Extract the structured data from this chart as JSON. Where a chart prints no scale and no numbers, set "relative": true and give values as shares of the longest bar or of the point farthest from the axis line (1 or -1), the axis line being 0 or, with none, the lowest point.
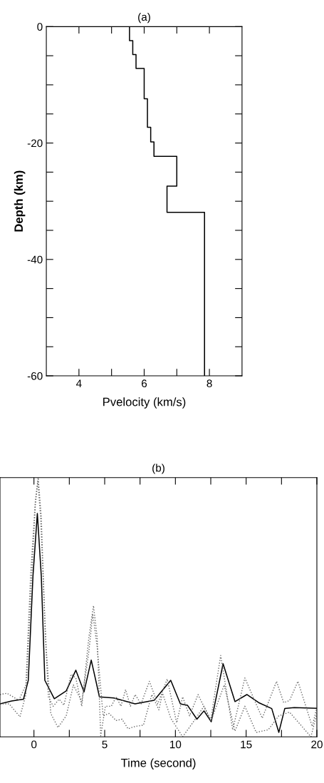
{
  "chart_data": [
    {
      "type": "line",
      "title": "(a)",
      "xlabel": "Pvelocity (km/s)",
      "ylabel": "Depth (km)",
      "xlim": [
        3,
        9
      ],
      "ylim": [
        -60,
        0
      ],
      "xticks": [
        {
          "value": 4,
          "label": "4"
        },
        {
          "value": 5,
          "label": null
        },
        {
          "value": 6,
          "label": "6"
        },
        {
          "value": 7,
          "label": null
        },
        {
          "value": 8,
          "label": "8"
        }
      ],
      "yticks": [
        {
          "value": 0,
          "label": "0"
        },
        {
          "value": -5,
          "label": null
        },
        {
          "value": -10,
          "label": null
        },
        {
          "value": -15,
          "label": null
        },
        {
          "value": -20,
          "label": "-20"
        },
        {
          "value": -25,
          "label": null
        },
        {
          "value": -30,
          "label": null
        },
        {
          "value": -35,
          "label": null
        },
        {
          "value": -40,
          "label": "-40"
        },
        {
          "value": -45,
          "label": null
        },
        {
          "value": -50,
          "label": null
        },
        {
          "value": -55,
          "label": null
        },
        {
          "value": -60,
          "label": "-60"
        }
      ],
      "series": [
        {
          "color": "#000000",
          "line_style": "solid",
          "x": [
            5.55,
            5.55,
            5.65,
            5.65,
            5.75,
            5.75,
            6.0,
            6.0,
            6.1,
            6.1,
            6.2,
            6.2,
            6.3,
            6.3,
            7.0,
            7.0,
            6.7,
            6.7,
            7.85,
            7.85
          ],
          "values": [
            0,
            -2.4,
            -2.4,
            -4.8,
            -4.8,
            -7.2,
            -7.2,
            -12.4,
            -12.4,
            -17.3,
            -17.3,
            -19.8,
            -19.8,
            -22.3,
            -22.3,
            -27.4,
            -27.4,
            -31.9,
            -31.9,
            -60
          ]
        }
      ]
    },
    {
      "type": "line",
      "title": "(b)",
      "xlabel": "Time (second)",
      "relative": true,
      "tick_labels": "x",
      "xlim": [
        -2.4,
        20
      ],
      "xticks": [
        {
          "value": 0,
          "label": "0"
        },
        {
          "value": 2.5,
          "label": null
        },
        {
          "value": 5,
          "label": "5"
        },
        {
          "value": 7.5,
          "label": null
        },
        {
          "value": 10,
          "label": "10"
        },
        {
          "value": 12.5,
          "label": null
        },
        {
          "value": 15,
          "label": "15"
        },
        {
          "value": 17.5,
          "label": null
        },
        {
          "value": 20,
          "label": "20"
        }
      ],
      "series": [
        {
          "color": "#000000",
          "line_style": "solid",
          "x": [
            -2.4,
            -1.58,
            -0.74,
            -0.4,
            -0.07,
            0.24,
            0.52,
            0.77,
            1.44,
            2.28,
            2.96,
            3.54,
            4.05,
            4.63,
            5.64,
            7.15,
            8.5,
            9.67,
            10.35,
            10.85,
            11.52,
            12.02,
            12.53,
            13.37,
            14.21,
            15.05,
            15.88,
            16.81,
            17.31,
            17.73,
            18.4,
            20.0
          ],
          "values": [
            0.127,
            0.138,
            0.145,
            0.218,
            0.62,
            0.862,
            0.62,
            0.218,
            0.147,
            0.177,
            0.257,
            0.173,
            0.296,
            0.154,
            0.15,
            0.127,
            0.141,
            0.218,
            0.127,
            0.122,
            0.068,
            0.1,
            0.058,
            0.282,
            0.136,
            0.163,
            0.132,
            0.109,
            0.017,
            0.109,
            0.113,
            0.11
          ]
        },
        {
          "color": "#666666",
          "line_style": "dotted",
          "x": [
            -2.4,
            -1.91,
            -1.07,
            -0.57,
            -0.24,
            0.1,
            0.3,
            0.52,
            0.77,
            1.02,
            1.36,
            1.78,
            2.12,
            2.62,
            2.96,
            3.38,
            3.88,
            4.21,
            4.47,
            4.72,
            5.05,
            5.47,
            5.81,
            6.15,
            6.48,
            6.82,
            7.15,
            7.57,
            8.16,
            8.75,
            9.42,
            10.09,
            10.51,
            11.0,
            11.6,
            12.49,
            13.2,
            14.05,
            14.91,
            16.14,
            17.15,
            17.65,
            18.07,
            18.66,
            19.67,
            20.0
          ],
          "values": [
            0.163,
            0.168,
            0.141,
            0.2,
            0.62,
            0.912,
            1.0,
            0.848,
            0.437,
            0.154,
            0.118,
            0.145,
            0.122,
            0.241,
            0.227,
            0.118,
            0.383,
            0.506,
            0.383,
            0.004,
            0.118,
            0.118,
            0.154,
            0.118,
            0.182,
            0.118,
            0.163,
            0.127,
            0.214,
            0.127,
            0.223,
            0.054,
            0.154,
            0.081,
            0.163,
            0.063,
            0.314,
            0.027,
            0.227,
            0.072,
            0.214,
            0.132,
            0.14,
            0.214,
            0.04,
            0.113
          ]
        },
        {
          "color": "#666666",
          "line_style": "dotted",
          "x": [
            -2.4,
            -1.75,
            -0.99,
            -0.57,
            -0.24,
            0.1,
            0.27,
            0.47,
            0.86,
            1.19,
            1.7,
            2.28,
            2.79,
            3.38,
            3.88,
            4.16,
            4.47,
            4.89,
            5.31,
            5.81,
            6.23,
            6.65,
            7.15,
            7.74,
            8.33,
            8.83,
            9.09,
            9.67,
            10.51,
            11.3,
            12.02,
            12.53,
            13.45,
            14.21,
            14.91,
            15.71,
            16.56,
            17.31,
            18.07,
            19.58,
            20.0
          ],
          "values": [
            0.127,
            0.127,
            0.077,
            0.163,
            0.529,
            0.894,
            0.985,
            0.848,
            0.346,
            0.09,
            0.036,
            0.081,
            0.2,
            0.136,
            0.328,
            0.474,
            0.346,
            0.081,
            0.09,
            0.063,
            0.068,
            0.031,
            0.04,
            0.045,
            0.163,
            0.104,
            0.168,
            0.072,
            0.0,
            0.06,
            0.118,
            0.063,
            0.2,
            0.022,
            0.118,
            0.017,
            0.027,
            0.081,
            0.095,
            0.0,
            0.09
          ]
        }
      ]
    }
  ]
}
